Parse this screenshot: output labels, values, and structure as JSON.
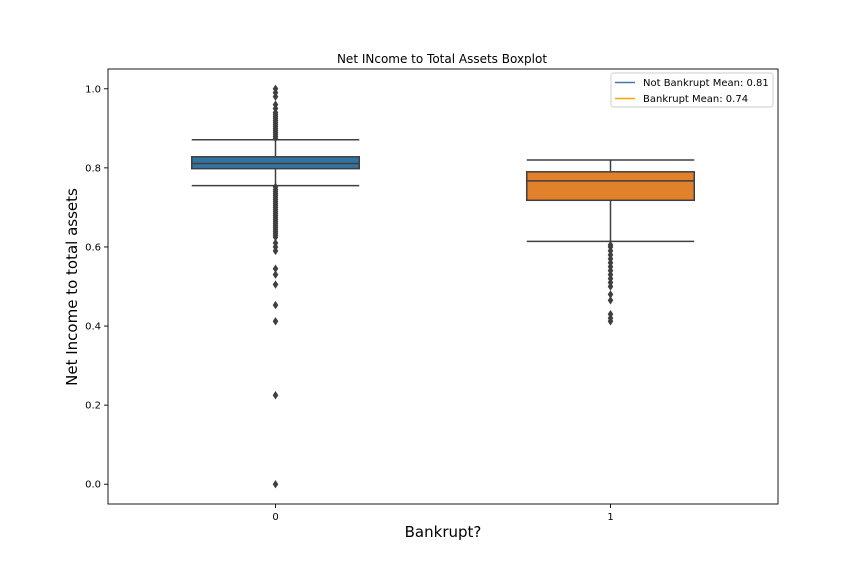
{
  "chart_data": {
    "type": "box",
    "title": "Net INcome to Total Assets Boxplot",
    "xlabel": "Bankrupt?",
    "ylabel": "Net Income to total assets",
    "ylim": [
      -0.05,
      1.05
    ],
    "yticks": [
      0.0,
      0.2,
      0.4,
      0.6,
      0.8,
      1.0
    ],
    "ytick_labels": [
      "0.0",
      "0.2",
      "0.4",
      "0.6",
      "0.8",
      "1.0"
    ],
    "categories": [
      "0",
      "1"
    ],
    "boxes": [
      {
        "category": "0",
        "color": "#3274a1",
        "whisker_low": 0.755,
        "q1": 0.798,
        "median": 0.811,
        "q3": 0.828,
        "whisker_high": 0.871,
        "outliers": [
          1.0,
          0.99,
          0.98,
          0.96,
          0.95,
          0.94,
          0.935,
          0.93,
          0.925,
          0.92,
          0.915,
          0.91,
          0.905,
          0.9,
          0.895,
          0.89,
          0.885,
          0.88,
          0.875,
          0.752,
          0.745,
          0.74,
          0.735,
          0.73,
          0.725,
          0.72,
          0.715,
          0.71,
          0.705,
          0.7,
          0.695,
          0.69,
          0.685,
          0.68,
          0.675,
          0.67,
          0.665,
          0.66,
          0.655,
          0.65,
          0.645,
          0.64,
          0.635,
          0.63,
          0.625,
          0.61,
          0.6,
          0.59,
          0.545,
          0.53,
          0.505,
          0.453,
          0.412,
          0.225,
          0.0
        ]
      },
      {
        "category": "1",
        "color": "#e1812c",
        "whisker_low": 0.614,
        "q1": 0.718,
        "median": 0.767,
        "q3": 0.79,
        "whisker_high": 0.82,
        "outliers": [
          0.605,
          0.6,
          0.59,
          0.58,
          0.57,
          0.56,
          0.55,
          0.54,
          0.53,
          0.52,
          0.51,
          0.5,
          0.48,
          0.465,
          0.43,
          0.42,
          0.412
        ]
      }
    ],
    "legend": {
      "position": "top-right",
      "entries": [
        {
          "label": "Not Bankrupt Mean: 0.81",
          "color": "#4c72b0"
        },
        {
          "label": "Bankrupt Mean: 0.74",
          "color": "#ffa500"
        }
      ]
    }
  }
}
